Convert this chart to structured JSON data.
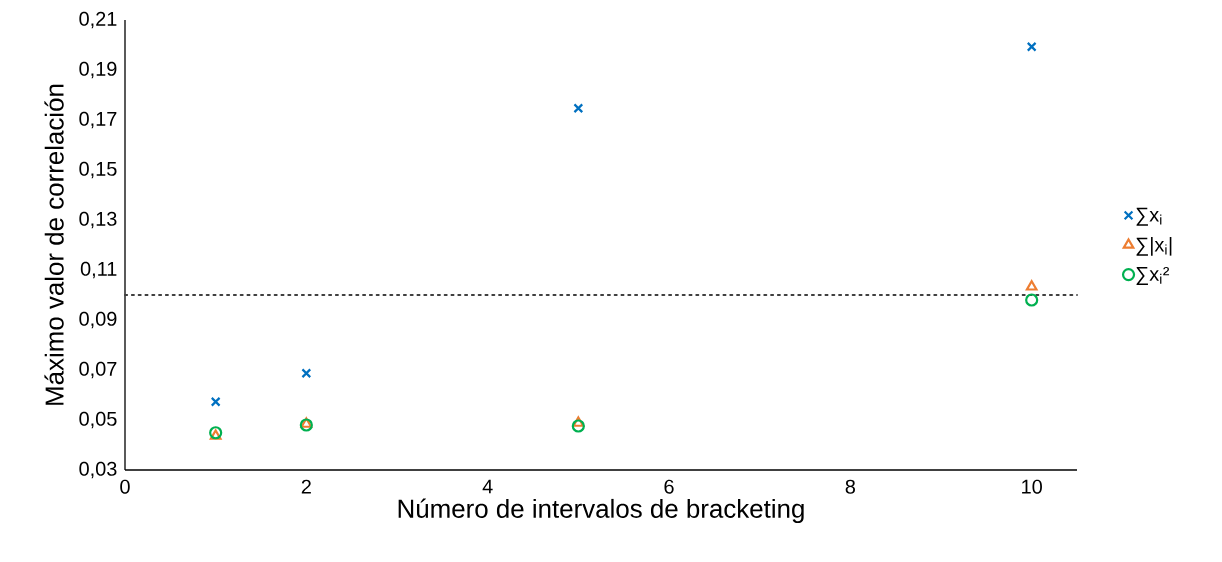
{
  "chart_data": {
    "type": "scatter",
    "xlabel": "Número de intervalos de bracketing",
    "ylabel": "Máximo valor de correlación",
    "xlim": [
      0,
      10.5
    ],
    "xticks": [
      0,
      2,
      4,
      6,
      8,
      10
    ],
    "ylim": [
      0.03,
      0.21
    ],
    "yticks": [
      {
        "value": 0.03,
        "label": "0,03"
      },
      {
        "value": 0.05,
        "label": "0,05"
      },
      {
        "value": 0.07,
        "label": "0,07"
      },
      {
        "value": 0.09,
        "label": "0,09"
      },
      {
        "value": 0.11,
        "label": "0,11"
      },
      {
        "value": 0.13,
        "label": "0,13"
      },
      {
        "value": 0.15,
        "label": "0,15"
      },
      {
        "value": 0.17,
        "label": "0,17"
      },
      {
        "value": 0.19,
        "label": "0,19"
      },
      {
        "value": 0.21,
        "label": "0,21"
      }
    ],
    "x": [
      1,
      2,
      5,
      10
    ],
    "series": [
      {
        "name": "∑x$_{i}$",
        "color": "#0070c0",
        "marker": "cross",
        "values": [
          0.0573,
          0.0687,
          0.1747,
          0.1993
        ]
      },
      {
        "name": "∑|x$_{i}$|",
        "color": "#ed7d31",
        "marker": "triangle",
        "values": [
          0.0436,
          0.0484,
          0.0488,
          0.1033
        ]
      },
      {
        "name": "∑x$_{i}$²",
        "color": "#00b050",
        "marker": "circle",
        "values": [
          0.0449,
          0.048,
          0.0476,
          0.098
        ]
      }
    ],
    "ref_lines": [
      {
        "axis": "y",
        "value": 0.1,
        "color": "#404040",
        "line_style": "dotted"
      }
    ],
    "legend": "right",
    "grid": false
  }
}
